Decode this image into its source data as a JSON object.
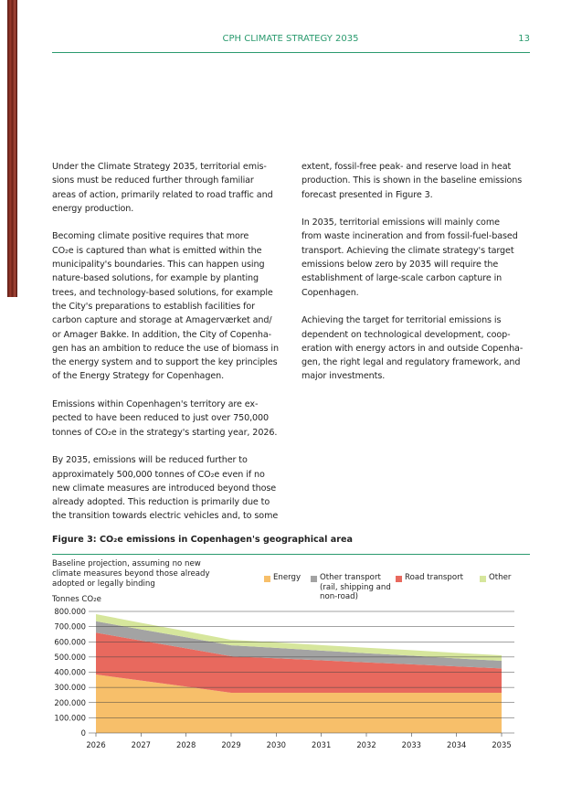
{
  "header": {
    "title": "CPH CLIMATE STRATEGY 2035",
    "page": "13"
  },
  "columns": [
    [
      [
        "Under the Climate Strategy 2035, territorial emis-",
        "sions must be reduced further through familiar",
        "areas of action, primarily related to road traffic and",
        "energy production."
      ],
      [
        "Becoming climate positive requires that more",
        "CO₂e is captured than what is emitted within the",
        "municipality's boundaries. This can happen using",
        "nature-based solutions, for example by planting",
        "trees, and technology-based solutions, for example",
        "the City's preparations to establish facilities for",
        "carbon capture and storage at Amagerværket and/",
        "or Amager Bakke. In addition, the City of Copenha-",
        "gen has an ambition to reduce the use of biomass in",
        "the energy system and to support the key principles",
        "of the Energy Strategy for Copenhagen."
      ],
      [
        "Emissions within Copenhagen's territory are ex-",
        "pected to have been reduced to just over 750,000",
        "tonnes of CO₂e in the strategy's starting year, 2026."
      ],
      [
        "By 2035, emissions will be reduced further to",
        "approximately 500,000 tonnes of CO₂e even if no",
        "new climate measures are introduced beyond those",
        "already adopted. This reduction is primarily due to",
        "the transition towards electric vehicles and, to some"
      ]
    ],
    [
      [
        "extent, fossil-free peak- and reserve load in heat",
        "production. This is shown in the baseline emissions",
        "forecast presented in Figure 3."
      ],
      [
        "In 2035, territorial emissions will mainly come",
        "from waste incineration and from fossil-fuel-based",
        "transport. Achieving the climate strategy's target",
        "emissions below zero by 2035 will require the",
        "establishment of large-scale carbon capture in",
        "Copenhagen."
      ],
      [
        "Achieving the target for territorial emissions is",
        "dependent on technological development, coop-",
        "eration with energy actors in and outside Copenha-",
        "gen, the right legal and regulatory framework, and",
        "major investments."
      ]
    ]
  ],
  "chart_data": {
    "type": "stacked_area",
    "title": "Figure 3: CO₂e emissions in Copenhagen's geographical area",
    "subtitle": [
      "Baseline projection, assuming no new",
      "climate measures beyond those already",
      "adopted or legally binding"
    ],
    "y_label": "Tonnes CO₂e",
    "categories": [
      "2026",
      "2027",
      "2028",
      "2029",
      "2030",
      "2031",
      "2032",
      "2033",
      "2034",
      "2035"
    ],
    "series": [
      {
        "name": "Energy",
        "color": "#f7bf6a",
        "values": [
          385000,
          345000,
          305000,
          265000,
          265000,
          265000,
          265000,
          265000,
          265000,
          265000
        ]
      },
      {
        "name": "Road transport",
        "color": "#e8695e",
        "values": [
          275000,
          263000,
          252000,
          240000,
          227000,
          213000,
          200000,
          187000,
          173000,
          160000
        ]
      },
      {
        "name": "Other transport (rail, shipping and non-road)",
        "color": "#a3a3a3",
        "values": [
          75000,
          74000,
          73000,
          72000,
          68000,
          64000,
          60000,
          57000,
          53000,
          50000
        ]
      },
      {
        "name": "Other",
        "color": "#d6e69c",
        "values": [
          47000,
          43000,
          40000,
          36000,
          36000,
          36000,
          36000,
          36000,
          36000,
          36000
        ]
      }
    ],
    "ylim": [
      0,
      800000
    ],
    "yticks": [
      0,
      {
        "value": 100000,
        "label": "100.000"
      },
      {
        "value": 200000,
        "label": "200.000"
      },
      {
        "value": 300000,
        "label": "300.000"
      },
      {
        "value": 400000,
        "label": "400.000"
      },
      {
        "value": 500000,
        "label": "500.000"
      },
      {
        "value": 600000,
        "label": "600.000"
      },
      {
        "value": 700000,
        "label": "700.000"
      },
      {
        "value": 800000,
        "label": "800.000"
      }
    ],
    "grid": true
  }
}
